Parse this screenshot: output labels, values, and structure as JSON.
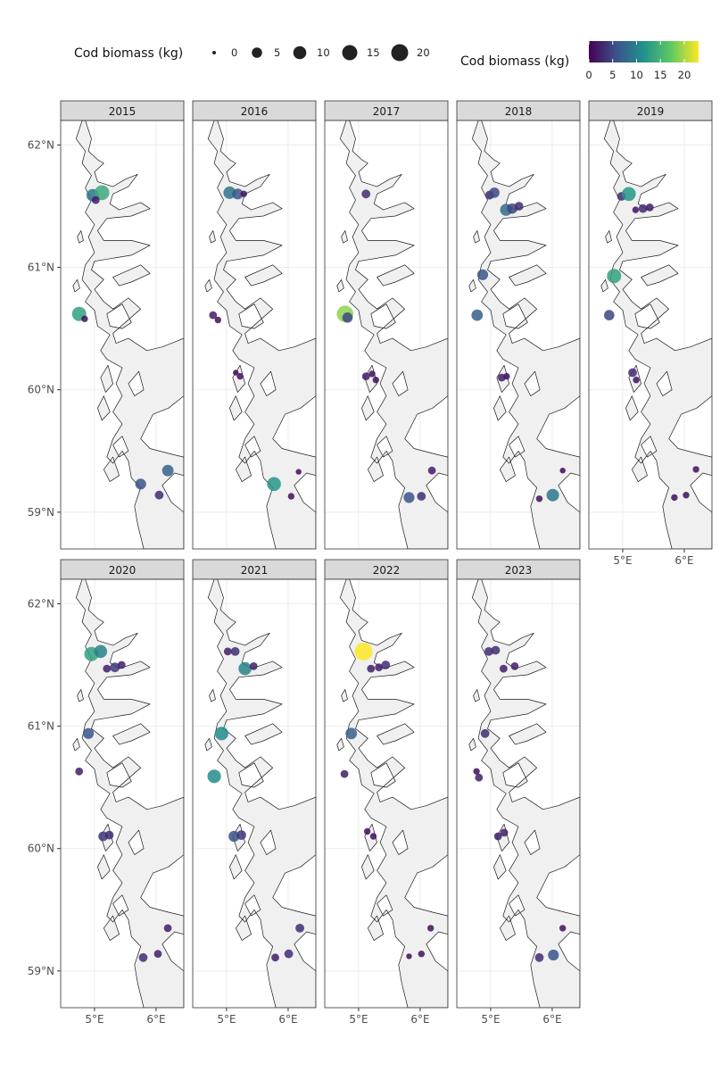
{
  "legend": {
    "size_title": "Cod biomass (kg)",
    "size_breaks": [
      "0",
      "5",
      "10",
      "15",
      "20"
    ],
    "color_title": "Cod biomass (kg)",
    "color_ticks": [
      "0",
      "5",
      "10",
      "15",
      "20"
    ],
    "color_stops": [
      "#440154",
      "#3b528b",
      "#21918c",
      "#5ec962",
      "#fde725"
    ]
  },
  "axes": {
    "y_ticks": [
      "62°N",
      "61°N",
      "60°N",
      "59°N"
    ],
    "x_ticks": [
      "5°E",
      "6°E"
    ]
  },
  "colors": {
    "panel_bg": "#ffffff",
    "land_fill": "#f0f0f0",
    "strip_fill": "#d9d9d9",
    "coast_stroke": "#1a1a1a",
    "grid": "#ebebeb"
  },
  "chart_data": {
    "type": "scatter",
    "xlabel": "",
    "ylabel": "",
    "xlim": [
      4.45,
      6.45
    ],
    "ylim": [
      58.7,
      62.2
    ],
    "size_variable": "Cod biomass (kg)",
    "color_variable": "Cod biomass (kg)",
    "color_scale": "viridis",
    "color_range": [
      0,
      23
    ],
    "panels": [
      {
        "year": "2015",
        "points": [
          {
            "lon": 4.97,
            "lat": 61.59,
            "kg": 9
          },
          {
            "lon": 5.12,
            "lat": 61.61,
            "kg": 14
          },
          {
            "lon": 5.02,
            "lat": 61.55,
            "kg": 2
          },
          {
            "lon": 4.75,
            "lat": 60.62,
            "kg": 13
          },
          {
            "lon": 4.84,
            "lat": 60.58,
            "kg": 1
          },
          {
            "lon": 5.75,
            "lat": 59.23,
            "kg": 6
          },
          {
            "lon": 6.19,
            "lat": 59.34,
            "kg": 7
          },
          {
            "lon": 6.05,
            "lat": 59.14,
            "kg": 3
          }
        ]
      },
      {
        "year": "2016",
        "points": [
          {
            "lon": 5.05,
            "lat": 61.61,
            "kg": 9
          },
          {
            "lon": 5.18,
            "lat": 61.6,
            "kg": 6
          },
          {
            "lon": 5.28,
            "lat": 61.6,
            "kg": 1
          },
          {
            "lon": 4.78,
            "lat": 60.61,
            "kg": 2
          },
          {
            "lon": 4.86,
            "lat": 60.57,
            "kg": 1
          },
          {
            "lon": 5.15,
            "lat": 60.14,
            "kg": 0.5
          },
          {
            "lon": 5.22,
            "lat": 60.11,
            "kg": 1
          },
          {
            "lon": 5.77,
            "lat": 59.23,
            "kg": 12
          },
          {
            "lon": 6.05,
            "lat": 59.13,
            "kg": 1
          },
          {
            "lon": 6.17,
            "lat": 59.33,
            "kg": 0.5
          }
        ]
      },
      {
        "year": "2017",
        "points": [
          {
            "lon": 5.12,
            "lat": 61.6,
            "kg": 3
          },
          {
            "lon": 4.78,
            "lat": 60.62,
            "kg": 19
          },
          {
            "lon": 4.82,
            "lat": 60.59,
            "kg": 5
          },
          {
            "lon": 5.12,
            "lat": 60.11,
            "kg": 2
          },
          {
            "lon": 5.22,
            "lat": 60.13,
            "kg": 1
          },
          {
            "lon": 5.28,
            "lat": 60.08,
            "kg": 1
          },
          {
            "lon": 5.82,
            "lat": 59.12,
            "kg": 6
          },
          {
            "lon": 6.02,
            "lat": 59.13,
            "kg": 3
          },
          {
            "lon": 6.19,
            "lat": 59.34,
            "kg": 2
          }
        ]
      },
      {
        "year": "2018",
        "points": [
          {
            "lon": 4.98,
            "lat": 61.59,
            "kg": 3
          },
          {
            "lon": 5.06,
            "lat": 61.61,
            "kg": 5
          },
          {
            "lon": 5.25,
            "lat": 61.47,
            "kg": 8
          },
          {
            "lon": 5.35,
            "lat": 61.48,
            "kg": 5
          },
          {
            "lon": 5.46,
            "lat": 61.5,
            "kg": 3
          },
          {
            "lon": 4.87,
            "lat": 60.94,
            "kg": 6
          },
          {
            "lon": 4.78,
            "lat": 60.61,
            "kg": 7
          },
          {
            "lon": 5.18,
            "lat": 60.1,
            "kg": 2
          },
          {
            "lon": 5.26,
            "lat": 60.11,
            "kg": 1
          },
          {
            "lon": 5.79,
            "lat": 59.11,
            "kg": 1
          },
          {
            "lon": 6.01,
            "lat": 59.14,
            "kg": 9
          },
          {
            "lon": 6.17,
            "lat": 59.34,
            "kg": 0.5
          }
        ]
      },
      {
        "year": "2019",
        "points": [
          {
            "lon": 4.98,
            "lat": 61.58,
            "kg": 3
          },
          {
            "lon": 5.1,
            "lat": 61.6,
            "kg": 12
          },
          {
            "lon": 5.21,
            "lat": 61.47,
            "kg": 1
          },
          {
            "lon": 5.33,
            "lat": 61.48,
            "kg": 3
          },
          {
            "lon": 5.44,
            "lat": 61.49,
            "kg": 2
          },
          {
            "lon": 4.86,
            "lat": 60.93,
            "kg": 13
          },
          {
            "lon": 4.78,
            "lat": 60.61,
            "kg": 5
          },
          {
            "lon": 5.16,
            "lat": 60.14,
            "kg": 3
          },
          {
            "lon": 5.22,
            "lat": 60.08,
            "kg": 1
          },
          {
            "lon": 5.84,
            "lat": 59.12,
            "kg": 1
          },
          {
            "lon": 6.03,
            "lat": 59.14,
            "kg": 1
          },
          {
            "lon": 6.19,
            "lat": 59.35,
            "kg": 1
          }
        ]
      },
      {
        "year": "2020",
        "points": [
          {
            "lon": 4.95,
            "lat": 61.59,
            "kg": 13
          },
          {
            "lon": 5.1,
            "lat": 61.61,
            "kg": 10
          },
          {
            "lon": 5.2,
            "lat": 61.47,
            "kg": 2
          },
          {
            "lon": 5.33,
            "lat": 61.48,
            "kg": 4
          },
          {
            "lon": 5.44,
            "lat": 61.5,
            "kg": 2
          },
          {
            "lon": 4.9,
            "lat": 60.94,
            "kg": 6
          },
          {
            "lon": 4.75,
            "lat": 60.63,
            "kg": 2
          },
          {
            "lon": 5.14,
            "lat": 60.1,
            "kg": 4
          },
          {
            "lon": 5.24,
            "lat": 60.11,
            "kg": 3
          },
          {
            "lon": 5.79,
            "lat": 59.11,
            "kg": 3
          },
          {
            "lon": 6.03,
            "lat": 59.14,
            "kg": 2
          },
          {
            "lon": 6.19,
            "lat": 59.35,
            "kg": 2
          }
        ]
      },
      {
        "year": "2021",
        "points": [
          {
            "lon": 5.02,
            "lat": 61.61,
            "kg": 2
          },
          {
            "lon": 5.14,
            "lat": 61.61,
            "kg": 3
          },
          {
            "lon": 5.3,
            "lat": 61.47,
            "kg": 10
          },
          {
            "lon": 5.44,
            "lat": 61.49,
            "kg": 2
          },
          {
            "lon": 4.92,
            "lat": 60.94,
            "kg": 11
          },
          {
            "lon": 4.8,
            "lat": 60.59,
            "kg": 11
          },
          {
            "lon": 5.12,
            "lat": 60.1,
            "kg": 6
          },
          {
            "lon": 5.24,
            "lat": 60.11,
            "kg": 4
          },
          {
            "lon": 5.79,
            "lat": 59.11,
            "kg": 2
          },
          {
            "lon": 6.01,
            "lat": 59.14,
            "kg": 3
          },
          {
            "lon": 6.19,
            "lat": 59.35,
            "kg": 3
          }
        ]
      },
      {
        "year": "2022",
        "points": [
          {
            "lon": 5.08,
            "lat": 61.61,
            "kg": 23
          },
          {
            "lon": 5.2,
            "lat": 61.47,
            "kg": 2
          },
          {
            "lon": 5.33,
            "lat": 61.48,
            "kg": 2
          },
          {
            "lon": 5.44,
            "lat": 61.5,
            "kg": 3
          },
          {
            "lon": 4.88,
            "lat": 60.94,
            "kg": 7
          },
          {
            "lon": 4.77,
            "lat": 60.61,
            "kg": 2
          },
          {
            "lon": 5.14,
            "lat": 60.14,
            "kg": 1
          },
          {
            "lon": 5.24,
            "lat": 60.1,
            "kg": 1
          },
          {
            "lon": 5.82,
            "lat": 59.12,
            "kg": 0.5
          },
          {
            "lon": 6.02,
            "lat": 59.14,
            "kg": 1
          },
          {
            "lon": 6.17,
            "lat": 59.35,
            "kg": 1
          }
        ]
      },
      {
        "year": "2023",
        "points": [
          {
            "lon": 4.97,
            "lat": 61.61,
            "kg": 3
          },
          {
            "lon": 5.08,
            "lat": 61.62,
            "kg": 3
          },
          {
            "lon": 5.21,
            "lat": 61.47,
            "kg": 2
          },
          {
            "lon": 5.39,
            "lat": 61.49,
            "kg": 2
          },
          {
            "lon": 4.91,
            "lat": 60.94,
            "kg": 3
          },
          {
            "lon": 4.77,
            "lat": 60.63,
            "kg": 1
          },
          {
            "lon": 4.81,
            "lat": 60.58,
            "kg": 2
          },
          {
            "lon": 5.12,
            "lat": 60.1,
            "kg": 2
          },
          {
            "lon": 5.22,
            "lat": 60.13,
            "kg": 2
          },
          {
            "lon": 5.79,
            "lat": 59.11,
            "kg": 3
          },
          {
            "lon": 6.02,
            "lat": 59.13,
            "kg": 6
          },
          {
            "lon": 6.17,
            "lat": 59.35,
            "kg": 1
          }
        ]
      }
    ]
  }
}
